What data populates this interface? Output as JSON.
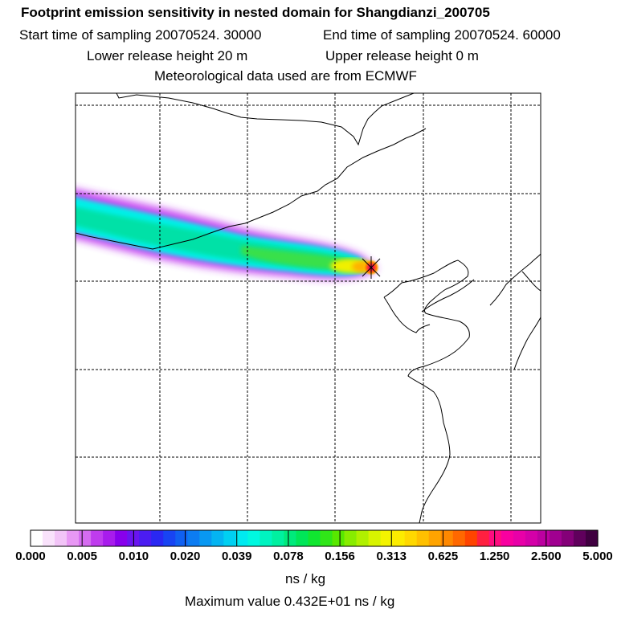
{
  "header": {
    "title": "Footprint emission sensitivity in nested domain for Shangdianzi_200705",
    "start_time": "Start time of sampling 20070524. 30000",
    "end_time": "End time of sampling 20070524. 60000",
    "lower_height": "Lower release height   20 m",
    "upper_height": "Upper release height    0 m",
    "met_source": "Meteorological data used are from ECMWF"
  },
  "colorbar": {
    "ticks": [
      "0.000",
      "0.005",
      "0.010",
      "0.020",
      "0.039",
      "0.078",
      "0.156",
      "0.313",
      "0.625",
      "1.250",
      "2.500",
      "5.000"
    ],
    "colors": [
      "#ffffff",
      "#f9e2fb",
      "#f2c4f7",
      "#e898f4",
      "#d56cf0",
      "#bf3cee",
      "#a81cec",
      "#8800ec",
      "#6a14f0",
      "#4b1cf2",
      "#2a28f3",
      "#1844f3",
      "#1060f2",
      "#0c7cf2",
      "#0898f2",
      "#04b4f2",
      "#00d0f2",
      "#00eaf0",
      "#00f8e0",
      "#00f4c0",
      "#00f0a0",
      "#00ea7c",
      "#00e658",
      "#10e630",
      "#30e618",
      "#58e800",
      "#88ec00",
      "#b0f000",
      "#d8f400",
      "#f4f400",
      "#fcec00",
      "#ffd800",
      "#ffc000",
      "#ffa400",
      "#ff8800",
      "#ff6800",
      "#ff4400",
      "#ff2040",
      "#ff0c80",
      "#f800a0",
      "#e800a8",
      "#d400a8",
      "#bc00a0",
      "#a00090",
      "#840078",
      "#60005c",
      "#400040"
    ],
    "units": "ns / kg"
  },
  "max_value": "Maximum value  0.432E+01 ns / kg",
  "map": {
    "receptor": "Shangdianzi",
    "receptor_marker": "star-icon",
    "land_color": "#ffffff",
    "grid_color": "#000000"
  }
}
